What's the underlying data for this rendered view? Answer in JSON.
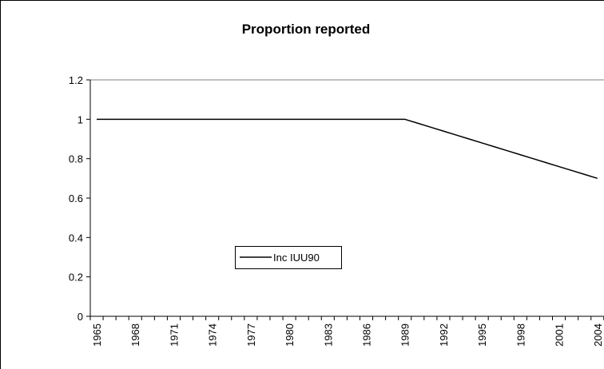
{
  "chart_data": {
    "type": "line",
    "title": "Proportion reported",
    "categories": [
      "1965",
      null,
      null,
      "1968",
      null,
      null,
      "1971",
      null,
      null,
      "1974",
      null,
      null,
      "1977",
      null,
      null,
      "1980",
      null,
      null,
      "1983",
      null,
      null,
      "1986",
      null,
      null,
      "1989",
      null,
      null,
      "1992",
      null,
      null,
      "1995",
      null,
      null,
      "1998",
      null,
      null,
      "2001",
      null,
      null,
      "2004"
    ],
    "series": [
      {
        "name": "Inc IUU90",
        "color": "#000000",
        "values": [
          1,
          1,
          1,
          1,
          1,
          1,
          1,
          1,
          1,
          1,
          1,
          1,
          1,
          1,
          1,
          1,
          1,
          1,
          1,
          1,
          1,
          1,
          1,
          1,
          1,
          0.98,
          0.96,
          0.94,
          0.92,
          0.9,
          0.88,
          0.86,
          0.84,
          0.82,
          0.8,
          0.78,
          0.76,
          0.74,
          0.72,
          0.7
        ]
      }
    ],
    "ylim": [
      0,
      1.2
    ],
    "yticks": [
      0,
      0.2,
      0.4,
      0.6,
      0.8,
      1,
      1.2
    ],
    "legend": "inside"
  }
}
